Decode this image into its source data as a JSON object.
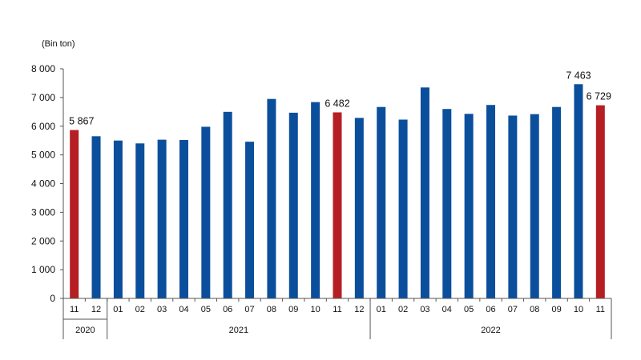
{
  "chart_data": {
    "type": "bar",
    "unit_label": "(Bin ton)",
    "ylim": [
      0,
      8000
    ],
    "y_ticks": [
      {
        "value": 0,
        "label": "0"
      },
      {
        "value": 1000,
        "label": "1 000"
      },
      {
        "value": 2000,
        "label": "2 000"
      },
      {
        "value": 3000,
        "label": "3 000"
      },
      {
        "value": 4000,
        "label": "4 000"
      },
      {
        "value": 5000,
        "label": "5 000"
      },
      {
        "value": 6000,
        "label": "6 000"
      },
      {
        "value": 7000,
        "label": "7 000"
      },
      {
        "value": 8000,
        "label": "8 000"
      }
    ],
    "grid": false,
    "categories": [
      "11",
      "12",
      "01",
      "02",
      "03",
      "04",
      "05",
      "06",
      "07",
      "08",
      "09",
      "10",
      "11",
      "12",
      "01",
      "02",
      "03",
      "04",
      "05",
      "06",
      "07",
      "08",
      "09",
      "10",
      "11"
    ],
    "values": [
      5867,
      5650,
      5500,
      5400,
      5530,
      5520,
      5980,
      6500,
      5460,
      6950,
      6470,
      6840,
      6482,
      6290,
      6670,
      6230,
      7350,
      6600,
      6430,
      6740,
      6370,
      6420,
      6670,
      7463,
      6729
    ],
    "highlight_indices": [
      0,
      12,
      24
    ],
    "data_labels": [
      {
        "index": 0,
        "text": "5 867"
      },
      {
        "index": 12,
        "text": "6 482"
      },
      {
        "index": 23,
        "text": "7 463"
      },
      {
        "index": 24,
        "text": "6 729"
      }
    ],
    "year_groups": [
      {
        "label": "2020",
        "start": 0,
        "end": 1
      },
      {
        "label": "2021",
        "start": 2,
        "end": 13
      },
      {
        "label": "2022",
        "start": 14,
        "end": 24
      }
    ],
    "colors": {
      "bar": "#0b4f9c",
      "highlight": "#b51f24",
      "axis": "#555555"
    }
  }
}
